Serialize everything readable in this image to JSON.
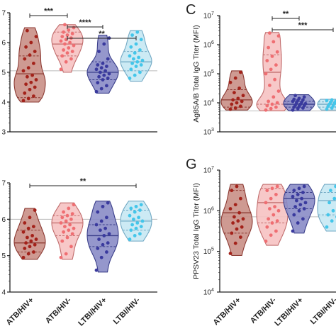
{
  "colors": {
    "ATB_HIV_pos": {
      "fill": "#c98f86",
      "stroke": "#8c3a33",
      "dot": "#a3221a"
    },
    "ATB_HIV_neg": {
      "fill": "#f6c2c2",
      "stroke": "#c06c6c",
      "dot": "#ef6e72"
    },
    "LTBI_HIV_pos": {
      "fill": "#8a8cc6",
      "stroke": "#3b3f8a",
      "dot": "#3a3a9e"
    },
    "LTBI_HIV_neg": {
      "fill": "#c7e8f3",
      "stroke": "#72a9c4",
      "dot": "#44c6ea"
    },
    "reference_line": "#bbbbbb"
  },
  "chart_data": [
    {
      "id": "top-left",
      "type": "violin",
      "panel_letter": "",
      "ylabel": "",
      "scale": "log",
      "ylim_exp": [
        3,
        7
      ],
      "y_tick_labels": [
        "3",
        "4",
        "5",
        "6",
        "7"
      ],
      "reference_line_exp": 5.05,
      "categories": [
        "ATB/HIV+",
        "ATB/HIV-",
        "LTBI/HIV+",
        "LTBI/HIV-"
      ],
      "series": [
        {
          "exp": [
            4.05,
            4.12,
            4.2,
            4.3,
            4.42,
            4.5,
            4.6,
            4.66,
            4.75,
            4.85,
            4.9,
            5.05,
            5.15,
            5.3,
            5.45,
            5.58,
            5.7,
            5.85,
            6.0,
            6.2,
            6.4
          ],
          "quartiles_exp": [
            4.15,
            4.95,
            5.55
          ],
          "range_exp": [
            4.0,
            6.5
          ]
        },
        {
          "exp": [
            5.1,
            5.35,
            5.45,
            5.55,
            5.65,
            5.7,
            5.75,
            5.82,
            5.9,
            5.95,
            6.0,
            6.05,
            6.1,
            6.15,
            6.2,
            6.25,
            6.3,
            6.35,
            6.42,
            6.5,
            6.6
          ],
          "quartiles_exp": [
            5.55,
            5.95,
            6.35
          ],
          "range_exp": [
            5.0,
            6.6
          ]
        },
        {
          "exp": [
            4.35,
            4.45,
            4.55,
            4.65,
            4.75,
            4.8,
            4.85,
            4.9,
            4.95,
            5.0,
            5.05,
            5.1,
            5.15,
            5.2,
            5.25,
            5.3,
            5.45,
            5.7,
            5.95,
            6.15
          ],
          "quartiles_exp": [
            4.75,
            5.0,
            5.35
          ],
          "range_exp": [
            4.3,
            6.25
          ]
        },
        {
          "exp": [
            4.8,
            4.9,
            5.0,
            5.1,
            5.2,
            5.25,
            5.3,
            5.35,
            5.4,
            5.45,
            5.5,
            5.55,
            5.65,
            5.75,
            5.85,
            5.95,
            6.1,
            6.25,
            6.35
          ],
          "quartiles_exp": [
            5.05,
            5.35,
            5.7
          ],
          "range_exp": [
            4.7,
            6.4
          ]
        }
      ],
      "comparisons": [
        {
          "from": 0,
          "to": 1,
          "label": "***"
        },
        {
          "from": 1,
          "to": 2,
          "label": "****"
        },
        {
          "from": 1,
          "to": 3,
          "label": "**"
        }
      ]
    },
    {
      "id": "top-right",
      "type": "violin",
      "panel_letter": "C",
      "ylabel": "Ag85A/B Total IgG Titer (MFI)",
      "scale": "log",
      "ylim_exp": [
        3,
        7
      ],
      "y_tick_labels": [
        "10",
        "10",
        "10",
        "10",
        "10"
      ],
      "y_tick_exponents": [
        "3",
        "4",
        "5",
        "6",
        "7"
      ],
      "reference_line_exp": 3.72,
      "categories": [
        "ATB/HIV+",
        "ATB/HIV-",
        "LTBI/HIV+",
        "LTBI/HIV-"
      ],
      "series": [
        {
          "exp": [
            3.78,
            3.82,
            3.88,
            3.95,
            4.0,
            4.05,
            4.1,
            4.15,
            4.25,
            4.35,
            4.5,
            4.7,
            4.85,
            5.05
          ],
          "quartiles_exp": [
            3.85,
            4.1,
            4.45
          ],
          "range_exp": [
            3.75,
            5.1
          ]
        },
        {
          "exp": [
            3.75,
            3.8,
            3.85,
            3.9,
            3.95,
            4.0,
            4.05,
            4.2,
            4.4,
            4.6,
            4.8,
            5.0,
            5.15,
            5.3,
            5.45,
            5.6,
            5.75,
            5.9,
            6.1,
            6.3,
            6.4
          ],
          "quartiles_exp": [
            3.95,
            5.05,
            5.65
          ],
          "range_exp": [
            3.72,
            6.42
          ]
        },
        {
          "exp": [
            3.75,
            3.8,
            3.82,
            3.85,
            3.88,
            3.9,
            3.92,
            3.95,
            3.97,
            4.0,
            4.02,
            4.05,
            4.08,
            4.1,
            4.12,
            4.15,
            4.2,
            4.25
          ],
          "quartiles_exp": [
            3.85,
            3.95,
            4.05
          ],
          "range_exp": [
            3.72,
            4.28
          ]
        },
        {
          "exp": [
            3.78,
            3.82,
            3.85,
            3.88,
            3.9,
            3.92,
            3.95,
            3.98,
            4.0,
            4.02,
            4.05,
            4.08,
            4.1
          ],
          "quartiles_exp": [
            3.85,
            3.95,
            4.03
          ],
          "range_exp": [
            3.75,
            4.12
          ]
        }
      ],
      "comparisons": [
        {
          "from": 1,
          "to": 2,
          "label": "**"
        },
        {
          "from": 1,
          "to": 3,
          "label": "***"
        }
      ]
    },
    {
      "id": "bottom-left",
      "type": "violin",
      "panel_letter": "",
      "ylabel": "",
      "scale": "log",
      "ylim_exp": [
        4,
        7
      ],
      "y_tick_labels": [
        "4",
        "5",
        "6",
        "7"
      ],
      "reference_line_exp": 6.0,
      "categories": [
        "ATB/HIV+",
        "ATB/HIV-",
        "LTBI/HIV+",
        "LTBI/HIV-"
      ],
      "series": [
        {
          "exp": [
            4.95,
            5.05,
            5.1,
            5.2,
            5.25,
            5.3,
            5.35,
            5.4,
            5.45,
            5.5,
            5.55,
            5.65,
            5.75,
            5.8,
            5.9,
            6.05,
            6.25
          ],
          "quartiles_exp": [
            5.1,
            5.35,
            5.7
          ],
          "range_exp": [
            4.9,
            6.3
          ]
        },
        {
          "exp": [
            4.95,
            5.05,
            5.25,
            5.4,
            5.5,
            5.6,
            5.65,
            5.7,
            5.75,
            5.8,
            5.85,
            5.9,
            5.95,
            6.0,
            6.05,
            6.1,
            6.15,
            6.2,
            6.3,
            6.4
          ],
          "quartiles_exp": [
            5.55,
            5.9,
            6.1
          ],
          "range_exp": [
            4.9,
            6.45
          ]
        },
        {
          "exp": [
            4.6,
            4.95,
            5.1,
            5.2,
            5.3,
            5.35,
            5.45,
            5.55,
            5.6,
            5.7,
            5.75,
            5.85,
            5.95,
            6.05,
            6.2,
            6.35,
            6.45
          ],
          "quartiles_exp": [
            5.25,
            5.55,
            5.85
          ],
          "range_exp": [
            4.55,
            6.5
          ]
        },
        {
          "exp": [
            5.45,
            5.55,
            5.6,
            5.7,
            5.75,
            5.8,
            5.85,
            5.9,
            5.95,
            6.0,
            6.05,
            6.1,
            6.2,
            6.25,
            6.3,
            6.35,
            6.4
          ],
          "quartiles_exp": [
            5.7,
            5.95,
            6.25
          ],
          "range_exp": [
            5.4,
            6.5
          ]
        }
      ],
      "comparisons": [
        {
          "from": 0,
          "to": 3,
          "label": "**"
        }
      ]
    },
    {
      "id": "bottom-right",
      "type": "violin",
      "panel_letter": "G",
      "ylabel": "PPSV23 Total IgG Titer (MFI)",
      "scale": "log",
      "ylim_exp": [
        4,
        7
      ],
      "y_tick_labels": [
        "10",
        "10",
        "10",
        "10"
      ],
      "y_tick_exponents": [
        "4",
        "5",
        "6",
        "7"
      ],
      "reference_line_exp": 5.85,
      "categories": [
        "ATB/HIV+",
        "ATB/HIV-",
        "LTBI/HIV+",
        "LTBI/HIV-"
      ],
      "series": [
        {
          "exp": [
            4.95,
            5.2,
            5.35,
            5.45,
            5.55,
            5.6,
            5.7,
            5.75,
            5.8,
            5.85,
            5.95,
            6.05,
            6.15,
            6.3,
            6.5,
            6.6
          ],
          "quartiles_exp": [
            5.45,
            5.95,
            6.5
          ],
          "range_exp": [
            4.9,
            6.65
          ]
        },
        {
          "exp": [
            5.25,
            5.4,
            5.5,
            5.6,
            5.7,
            5.75,
            5.8,
            5.9,
            6.0,
            6.05,
            6.1,
            6.2,
            6.3,
            6.4,
            6.5,
            6.55,
            6.6
          ],
          "quartiles_exp": [
            5.7,
            6.2,
            6.55
          ],
          "range_exp": [
            5.15,
            6.65
          ]
        },
        {
          "exp": [
            5.5,
            5.7,
            5.8,
            5.9,
            6.0,
            6.05,
            6.1,
            6.15,
            6.2,
            6.25,
            6.3,
            6.35,
            6.4,
            6.45,
            6.5,
            6.55,
            6.6
          ],
          "quartiles_exp": [
            6.05,
            6.3,
            6.45
          ],
          "range_exp": [
            5.45,
            6.65
          ]
        },
        {
          "exp": [
            5.6,
            5.75,
            5.85,
            5.9,
            6.0,
            6.1,
            6.2,
            6.3,
            6.4,
            6.5,
            6.6
          ],
          "quartiles_exp": [
            5.9,
            6.25,
            6.45
          ],
          "range_exp": [
            5.5,
            6.65
          ]
        }
      ],
      "comparisons": []
    }
  ]
}
